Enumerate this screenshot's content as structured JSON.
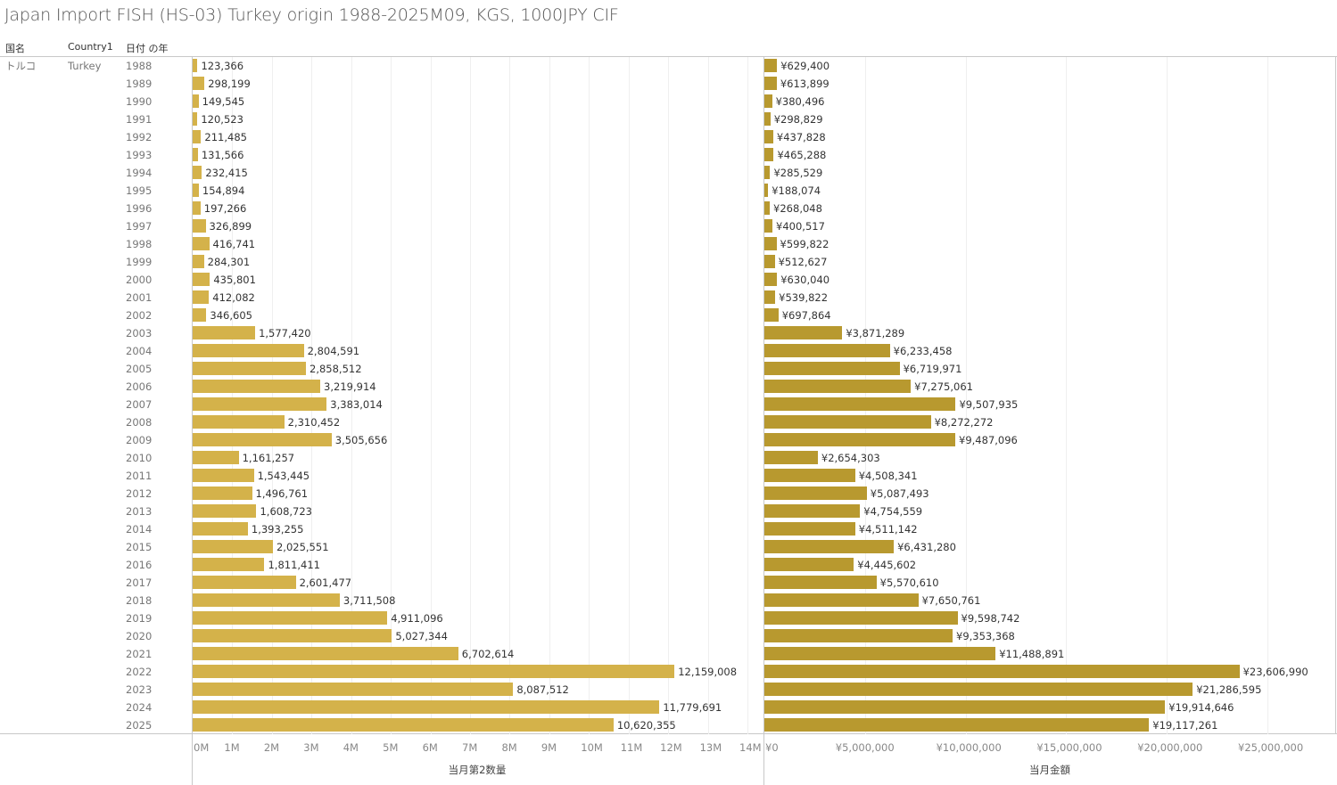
{
  "header": {
    "title": "Japan Import FISH (HS-03) Turkey origin 1988-2025M09, KGS, 1000JPY CIF",
    "col_country_jp": "国名",
    "col_country": "Country1",
    "col_year": "日付 の年",
    "country_jp": "トルコ",
    "country": "Turkey"
  },
  "colors": {
    "quantity_bar": "#D4B24A",
    "value_bar": "#B8992F"
  },
  "chart_data": [
    {
      "type": "bar",
      "orientation": "horizontal",
      "title": "",
      "xlabel": "当月第2数量",
      "ylabel": "日付 の年",
      "xlim": [
        0,
        14000000
      ],
      "tick_labels": [
        "0M",
        "1M",
        "2M",
        "3M",
        "4M",
        "5M",
        "6M",
        "7M",
        "8M",
        "9M",
        "10M",
        "11M",
        "12M",
        "13M",
        "14M"
      ],
      "categories": [
        "1988",
        "1989",
        "1990",
        "1991",
        "1992",
        "1993",
        "1994",
        "1995",
        "1996",
        "1997",
        "1998",
        "1999",
        "2000",
        "2001",
        "2002",
        "2003",
        "2004",
        "2005",
        "2006",
        "2007",
        "2008",
        "2009",
        "2010",
        "2011",
        "2012",
        "2013",
        "2014",
        "2015",
        "2016",
        "2017",
        "2018",
        "2019",
        "2020",
        "2021",
        "2022",
        "2023",
        "2024",
        "2025"
      ],
      "values": [
        123366,
        298199,
        149545,
        120523,
        211485,
        131566,
        232415,
        154894,
        197266,
        326899,
        416741,
        284301,
        435801,
        412082,
        346605,
        1577420,
        2804591,
        2858512,
        3219914,
        3383014,
        2310452,
        3505656,
        1161257,
        1543445,
        1496761,
        1608723,
        1393255,
        2025551,
        1811411,
        2601477,
        3711508,
        4911096,
        5027344,
        6702614,
        12159008,
        8087512,
        11779691,
        10620355
      ],
      "value_labels": [
        "123,366",
        "298,199",
        "149,545",
        "120,523",
        "211,485",
        "131,566",
        "232,415",
        "154,894",
        "197,266",
        "326,899",
        "416,741",
        "284,301",
        "435,801",
        "412,082",
        "346,605",
        "1,577,420",
        "2,804,591",
        "2,858,512",
        "3,219,914",
        "3,383,014",
        "2,310,452",
        "3,505,656",
        "1,161,257",
        "1,543,445",
        "1,496,761",
        "1,608,723",
        "1,393,255",
        "2,025,551",
        "1,811,411",
        "2,601,477",
        "3,711,508",
        "4,911,096",
        "5,027,344",
        "6,702,614",
        "12,159,008",
        "8,087,512",
        "11,779,691",
        "10,620,355"
      ],
      "grid": true
    },
    {
      "type": "bar",
      "orientation": "horizontal",
      "title": "",
      "xlabel": "当月金額",
      "ylabel": "日付 の年",
      "xlim": [
        0,
        28500000
      ],
      "ticks": [
        0,
        5000000,
        10000000,
        15000000,
        20000000,
        25000000
      ],
      "tick_labels": [
        "¥0",
        "¥5,000,000",
        "¥10,000,000",
        "¥15,000,000",
        "¥20,000,000",
        "¥25,000,000"
      ],
      "categories": [
        "1988",
        "1989",
        "1990",
        "1991",
        "1992",
        "1993",
        "1994",
        "1995",
        "1996",
        "1997",
        "1998",
        "1999",
        "2000",
        "2001",
        "2002",
        "2003",
        "2004",
        "2005",
        "2006",
        "2007",
        "2008",
        "2009",
        "2010",
        "2011",
        "2012",
        "2013",
        "2014",
        "2015",
        "2016",
        "2017",
        "2018",
        "2019",
        "2020",
        "2021",
        "2022",
        "2023",
        "2024",
        "2025"
      ],
      "values": [
        629400,
        613899,
        380496,
        298829,
        437828,
        465288,
        285529,
        188074,
        268048,
        400517,
        599822,
        512627,
        630040,
        539822,
        697864,
        3871289,
        6233458,
        6719971,
        7275061,
        9507935,
        8272272,
        9487096,
        2654303,
        4508341,
        5087493,
        4754559,
        4511142,
        6431280,
        4445602,
        5570610,
        7650761,
        9598742,
        9353368,
        11488891,
        23606990,
        21286595,
        19914646,
        19117261
      ],
      "value_labels": [
        "¥629,400",
        "¥613,899",
        "¥380,496",
        "¥298,829",
        "¥437,828",
        "¥465,288",
        "¥285,529",
        "¥188,074",
        "¥268,048",
        "¥400,517",
        "¥599,822",
        "¥512,627",
        "¥630,040",
        "¥539,822",
        "¥697,864",
        "¥3,871,289",
        "¥6,233,458",
        "¥6,719,971",
        "¥7,275,061",
        "¥9,507,935",
        "¥8,272,272",
        "¥9,487,096",
        "¥2,654,303",
        "¥4,508,341",
        "¥5,087,493",
        "¥4,754,559",
        "¥4,511,142",
        "¥6,431,280",
        "¥4,445,602",
        "¥5,570,610",
        "¥7,650,761",
        "¥9,598,742",
        "¥9,353,368",
        "¥11,488,891",
        "¥23,606,990",
        "¥21,286,595",
        "¥19,914,646",
        "¥19,117,261"
      ],
      "grid": true
    }
  ]
}
